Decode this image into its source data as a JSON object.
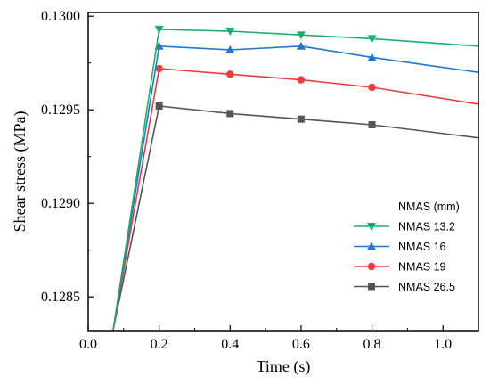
{
  "chart_data": {
    "type": "line",
    "title": "",
    "xlabel": "Time (s)",
    "ylabel": "Shear stress (MPa)",
    "xlim": [
      0.0,
      1.1
    ],
    "ylim": [
      0.12832,
      0.13002
    ],
    "xticks": [
      0.0,
      0.2,
      0.4,
      0.6,
      0.8,
      1.0
    ],
    "xtick_labels": [
      "0.0",
      "0.2",
      "0.4",
      "0.6",
      "0.8",
      "1.0"
    ],
    "yticks": [
      0.1285,
      0.129,
      0.1295,
      0.13
    ],
    "ytick_labels": [
      "0.1285",
      "0.1290",
      "0.1295",
      "0.1300"
    ],
    "grid": false,
    "legend": {
      "title": "NMAS  (mm)",
      "position": "right"
    },
    "series": [
      {
        "name": "NMAS 13.2",
        "color": "#1ab06b",
        "marker": "triangle-down",
        "x": [
          0.07,
          0.2,
          0.4,
          0.6,
          0.8,
          1.1
        ],
        "y": [
          0.12832,
          0.12993,
          0.12992,
          0.1299,
          0.12988,
          0.12984
        ]
      },
      {
        "name": "NMAS 16",
        "color": "#1f77d4",
        "marker": "triangle-up",
        "x": [
          0.07,
          0.2,
          0.4,
          0.6,
          0.8,
          1.1
        ],
        "y": [
          0.12832,
          0.12984,
          0.12982,
          0.12984,
          0.12978,
          0.1297
        ]
      },
      {
        "name": "NMAS 19",
        "color": "#ee3b3b",
        "marker": "circle",
        "x": [
          0.07,
          0.2,
          0.4,
          0.6,
          0.8,
          1.1
        ],
        "y": [
          0.12832,
          0.12972,
          0.12969,
          0.12966,
          0.12962,
          0.12953
        ]
      },
      {
        "name": "NMAS 26.5",
        "color": "#555555",
        "marker": "square",
        "x": [
          0.07,
          0.2,
          0.4,
          0.6,
          0.8,
          1.1
        ],
        "y": [
          0.12832,
          0.12952,
          0.12948,
          0.12945,
          0.12942,
          0.12935
        ]
      }
    ]
  }
}
